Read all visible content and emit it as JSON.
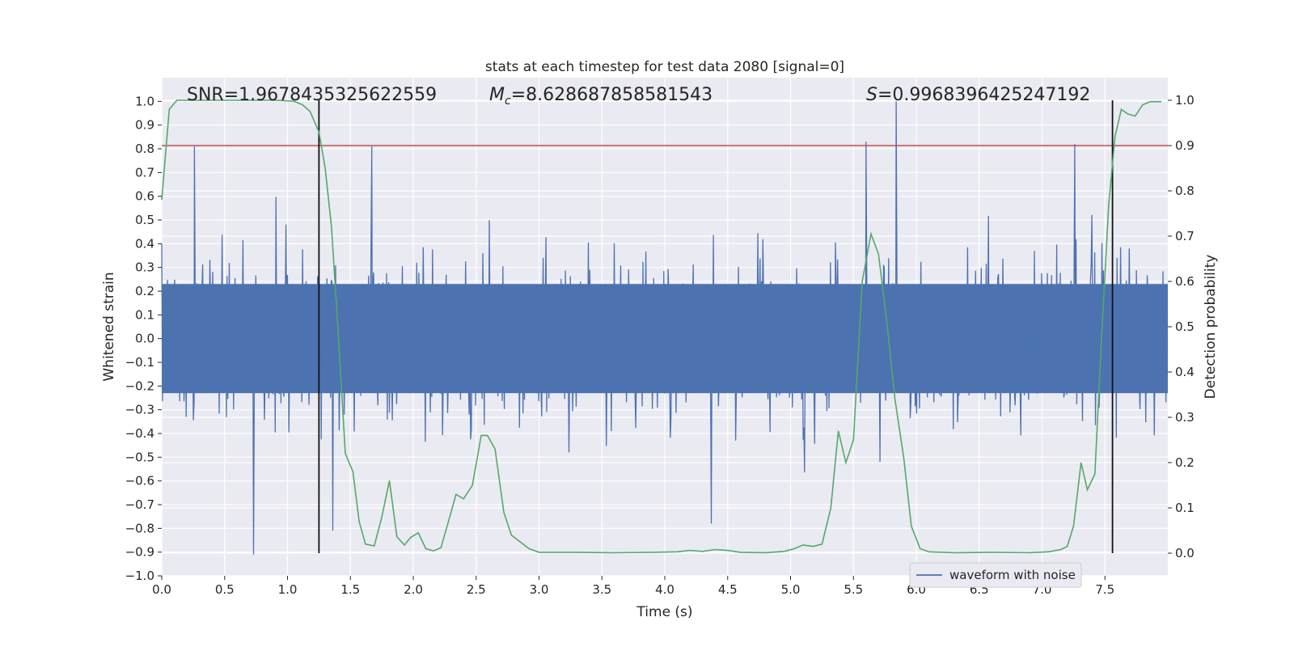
{
  "chart_data": {
    "type": "line",
    "title": "stats at each timestep for test data 2080 [signal=0]",
    "xlabel": "Time (s)",
    "ylabel_left": "Whitened strain",
    "ylabel_right": "Detection probability",
    "xlim": [
      0.0,
      8.0
    ],
    "ylim_left": [
      -1.0,
      1.1
    ],
    "ylim_right": [
      -0.05,
      1.05
    ],
    "x_ticks": [
      "0.0",
      "0.5",
      "1.0",
      "1.5",
      "2.0",
      "2.5",
      "3.0",
      "3.5",
      "4.0",
      "4.5",
      "5.0",
      "5.5",
      "6.0",
      "6.5",
      "7.0",
      "7.5"
    ],
    "x_tick_values": [
      0,
      0.5,
      1,
      1.5,
      2,
      2.5,
      3,
      3.5,
      4,
      4.5,
      5,
      5.5,
      6,
      6.5,
      7,
      7.5
    ],
    "y_left_ticks": [
      "−1.0",
      "−0.9",
      "−0.8",
      "−0.7",
      "−0.6",
      "−0.5",
      "−0.4",
      "−0.3",
      "−0.2",
      "−0.1",
      "0.0",
      "0.1",
      "0.2",
      "0.3",
      "0.4",
      "0.5",
      "0.6",
      "0.7",
      "0.8",
      "0.9",
      "1.0"
    ],
    "y_left_tick_values": [
      -1.0,
      -0.9,
      -0.8,
      -0.7,
      -0.6,
      -0.5,
      -0.4,
      -0.3,
      -0.2,
      -0.1,
      0.0,
      0.1,
      0.2,
      0.3,
      0.4,
      0.5,
      0.6,
      0.7,
      0.8,
      0.9,
      1.0
    ],
    "y_right_ticks": [
      "0.0",
      "0.1",
      "0.2",
      "0.3",
      "0.4",
      "0.5",
      "0.6",
      "0.7",
      "0.8",
      "0.9",
      "1.0"
    ],
    "y_right_tick_values": [
      0.0,
      0.1,
      0.2,
      0.3,
      0.4,
      0.5,
      0.6,
      0.7,
      0.8,
      0.9,
      1.0
    ],
    "annotations": {
      "snr": "SNR=1.9678435325622559",
      "mc": "=8.628687858581543",
      "mc_symbol": "M",
      "mc_sub": "c",
      "s": "=0.9968396425247192",
      "s_symbol": "S"
    },
    "legend": {
      "label": "waveform with noise",
      "placement": "lower-right"
    },
    "threshold_line": {
      "y_right": 0.9,
      "color": "#c44e52"
    },
    "vertical_markers": [
      1.25,
      7.56
    ],
    "waveform": {
      "name": "waveform with noise",
      "color": "#4c72b0",
      "sample_count": 1400,
      "dense_band": [
        -0.23,
        0.23
      ],
      "notable_peaks": [
        {
          "x": 0.26,
          "y": 0.81
        },
        {
          "x": 1.67,
          "y": 0.81
        },
        {
          "x": 5.84,
          "y": 1.0
        },
        {
          "x": 5.6,
          "y": 0.83
        },
        {
          "x": 7.26,
          "y": 0.82
        },
        {
          "x": 0.73,
          "y": -0.91
        },
        {
          "x": 4.37,
          "y": -0.78
        },
        {
          "x": 1.36,
          "y": -0.81
        }
      ]
    },
    "detection_probability": {
      "name": "Detection probability",
      "color": "#55a868",
      "points": [
        [
          0.0,
          0.78
        ],
        [
          0.06,
          0.98
        ],
        [
          0.12,
          1.0
        ],
        [
          0.3,
          1.0
        ],
        [
          0.6,
          1.0
        ],
        [
          0.9,
          1.0
        ],
        [
          1.05,
          0.998
        ],
        [
          1.12,
          0.99
        ],
        [
          1.18,
          0.975
        ],
        [
          1.25,
          0.93
        ],
        [
          1.3,
          0.85
        ],
        [
          1.35,
          0.72
        ],
        [
          1.4,
          0.5
        ],
        [
          1.46,
          0.22
        ],
        [
          1.52,
          0.18
        ],
        [
          1.57,
          0.07
        ],
        [
          1.62,
          0.02
        ],
        [
          1.69,
          0.016
        ],
        [
          1.75,
          0.08
        ],
        [
          1.81,
          0.16
        ],
        [
          1.87,
          0.036
        ],
        [
          1.93,
          0.018
        ],
        [
          1.98,
          0.035
        ],
        [
          2.04,
          0.045
        ],
        [
          2.1,
          0.01
        ],
        [
          2.16,
          0.005
        ],
        [
          2.22,
          0.012
        ],
        [
          2.28,
          0.07
        ],
        [
          2.34,
          0.13
        ],
        [
          2.4,
          0.12
        ],
        [
          2.47,
          0.15
        ],
        [
          2.54,
          0.26
        ],
        [
          2.59,
          0.26
        ],
        [
          2.65,
          0.23
        ],
        [
          2.72,
          0.09
        ],
        [
          2.78,
          0.04
        ],
        [
          2.85,
          0.025
        ],
        [
          2.92,
          0.01
        ],
        [
          3.0,
          0.002
        ],
        [
          3.3,
          0.002
        ],
        [
          3.6,
          0.001
        ],
        [
          3.9,
          0.002
        ],
        [
          4.1,
          0.003
        ],
        [
          4.2,
          0.006
        ],
        [
          4.3,
          0.004
        ],
        [
          4.4,
          0.008
        ],
        [
          4.5,
          0.006
        ],
        [
          4.6,
          0.002
        ],
        [
          4.8,
          0.001
        ],
        [
          4.95,
          0.004
        ],
        [
          5.03,
          0.01
        ],
        [
          5.1,
          0.018
        ],
        [
          5.18,
          0.015
        ],
        [
          5.25,
          0.02
        ],
        [
          5.32,
          0.1
        ],
        [
          5.38,
          0.27
        ],
        [
          5.44,
          0.2
        ],
        [
          5.5,
          0.25
        ],
        [
          5.57,
          0.6
        ],
        [
          5.64,
          0.705
        ],
        [
          5.7,
          0.66
        ],
        [
          5.77,
          0.5
        ],
        [
          5.83,
          0.34
        ],
        [
          5.9,
          0.21
        ],
        [
          5.96,
          0.06
        ],
        [
          6.03,
          0.01
        ],
        [
          6.1,
          0.003
        ],
        [
          6.3,
          0.001
        ],
        [
          6.6,
          0.002
        ],
        [
          6.9,
          0.001
        ],
        [
          7.05,
          0.003
        ],
        [
          7.15,
          0.008
        ],
        [
          7.2,
          0.015
        ],
        [
          7.25,
          0.06
        ],
        [
          7.31,
          0.2
        ],
        [
          7.36,
          0.14
        ],
        [
          7.42,
          0.175
        ],
        [
          7.47,
          0.46
        ],
        [
          7.53,
          0.77
        ],
        [
          7.58,
          0.92
        ],
        [
          7.63,
          0.98
        ],
        [
          7.68,
          0.97
        ],
        [
          7.74,
          0.965
        ],
        [
          7.8,
          0.99
        ],
        [
          7.86,
          0.997
        ],
        [
          7.95,
          0.997
        ]
      ]
    }
  }
}
